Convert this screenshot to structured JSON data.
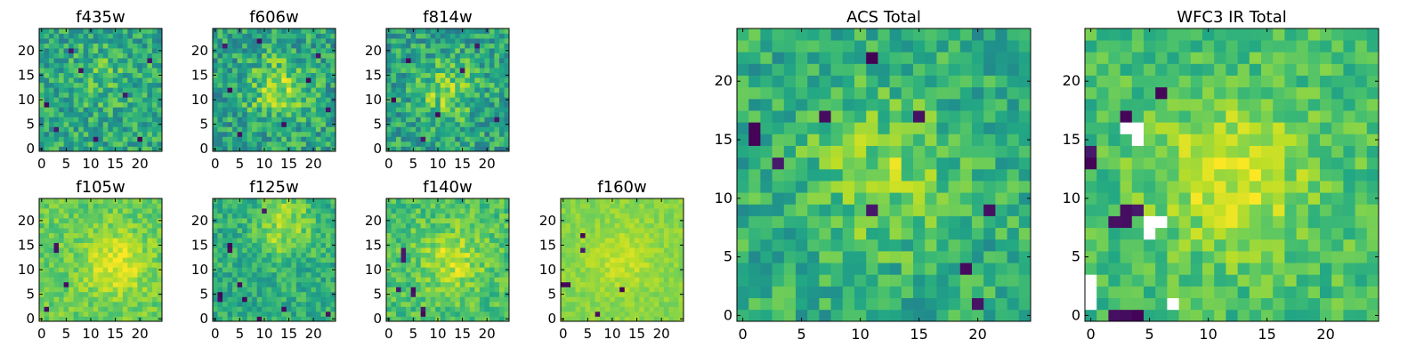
{
  "chart_data": {
    "type": "heatmap",
    "colormap": "viridis",
    "colors": {
      "low": "#440154",
      "mid": "#21908c",
      "high": "#fde725",
      "masked": "#ffffff",
      "frame": "#000000"
    },
    "panels": [
      {
        "title": "f435w",
        "grid_size": 25,
        "xticks": [
          0,
          5,
          10,
          15,
          20
        ],
        "yticks": [
          0,
          5,
          10,
          15,
          20
        ],
        "xlim": [
          0,
          24
        ],
        "ylim": [
          0,
          24
        ],
        "bright_center": [
          13,
          15
        ],
        "bright_amp": 0.1,
        "noise_min": 0.2,
        "noise_max": 0.95,
        "base": 0.62,
        "dark_pixels": [
          [
            6,
            20
          ],
          [
            17,
            11
          ],
          [
            3,
            4
          ],
          [
            20,
            2
          ],
          [
            8,
            16
          ],
          [
            22,
            18
          ],
          [
            11,
            2
          ],
          [
            1,
            9
          ]
        ],
        "masked_pixels": []
      },
      {
        "title": "f606w",
        "grid_size": 25,
        "xticks": [
          0,
          5,
          10,
          15,
          20
        ],
        "yticks": [
          0,
          5,
          10,
          15,
          20
        ],
        "xlim": [
          0,
          24
        ],
        "ylim": [
          0,
          24
        ],
        "bright_center": [
          13,
          12
        ],
        "bright_amp": 0.25,
        "noise_min": 0.15,
        "noise_max": 0.95,
        "base": 0.6,
        "dark_pixels": [
          [
            2,
            21
          ],
          [
            19,
            14
          ],
          [
            5,
            3
          ],
          [
            23,
            8
          ],
          [
            9,
            22
          ],
          [
            14,
            5
          ],
          [
            21,
            19
          ],
          [
            3,
            12
          ]
        ],
        "masked_pixels": []
      },
      {
        "title": "f814w",
        "grid_size": 25,
        "xticks": [
          0,
          5,
          10,
          15,
          20
        ],
        "yticks": [
          0,
          5,
          10,
          15,
          20
        ],
        "xlim": [
          0,
          24
        ],
        "ylim": [
          0,
          24
        ],
        "bright_center": [
          12,
          12
        ],
        "bright_amp": 0.25,
        "noise_min": 0.15,
        "noise_max": 0.95,
        "base": 0.58,
        "dark_pixels": [
          [
            4,
            18
          ],
          [
            18,
            21
          ],
          [
            7,
            2
          ],
          [
            22,
            6
          ],
          [
            15,
            16
          ],
          [
            1,
            10
          ],
          [
            10,
            7
          ]
        ],
        "masked_pixels": []
      },
      {
        "title": "f105w",
        "grid_size": 25,
        "xticks": [
          0,
          5,
          10,
          15,
          20
        ],
        "yticks": [
          0,
          5,
          10,
          15,
          20
        ],
        "xlim": [
          0,
          24
        ],
        "ylim": [
          0,
          24
        ],
        "bright_center": [
          15,
          11
        ],
        "bright_amp": 0.2,
        "noise_min": 0.55,
        "noise_max": 0.95,
        "base": 0.78,
        "dark_pixels": [
          [
            3,
            15
          ],
          [
            3,
            14
          ],
          [
            5,
            7
          ],
          [
            1,
            2
          ]
        ],
        "masked_pixels": []
      },
      {
        "title": "f125w",
        "grid_size": 25,
        "xticks": [
          0,
          5,
          10,
          15,
          20
        ],
        "yticks": [
          0,
          5,
          10,
          15,
          20
        ],
        "xlim": [
          0,
          24
        ],
        "ylim": [
          0,
          24
        ],
        "bright_center": [
          14,
          19
        ],
        "bright_amp": 0.25,
        "noise_min": 0.35,
        "noise_max": 0.9,
        "base": 0.62,
        "dark_pixels": [
          [
            3,
            14
          ],
          [
            3,
            15
          ],
          [
            5,
            7
          ],
          [
            1,
            5
          ],
          [
            1,
            4
          ],
          [
            9,
            0
          ],
          [
            14,
            2
          ],
          [
            23,
            1
          ],
          [
            6,
            4
          ],
          [
            10,
            22
          ]
        ],
        "masked_pixels": []
      },
      {
        "title": "f140w",
        "grid_size": 25,
        "xticks": [
          0,
          5,
          10,
          15,
          20
        ],
        "yticks": [
          0,
          5,
          10,
          15,
          20
        ],
        "xlim": [
          0,
          24
        ],
        "ylim": [
          0,
          24
        ],
        "bright_center": [
          13,
          12
        ],
        "bright_amp": 0.2,
        "noise_min": 0.45,
        "noise_max": 0.95,
        "base": 0.72,
        "dark_pixels": [
          [
            3,
            14
          ],
          [
            3,
            13
          ],
          [
            3,
            12
          ],
          [
            5,
            6
          ],
          [
            5,
            5
          ],
          [
            2,
            6
          ],
          [
            7,
            1
          ],
          [
            7,
            2
          ]
        ],
        "masked_pixels": []
      },
      {
        "title": "f160w",
        "grid_size": 25,
        "xticks": [
          0,
          5,
          10,
          15,
          20
        ],
        "yticks": [
          0,
          5,
          10,
          15,
          20
        ],
        "xlim": [
          0,
          24
        ],
        "ylim": [
          0,
          24
        ],
        "bright_center": [
          12,
          12
        ],
        "bright_amp": 0.1,
        "noise_min": 0.7,
        "noise_max": 0.93,
        "base": 0.82,
        "dark_pixels": [
          [
            4,
            17
          ],
          [
            4,
            14
          ],
          [
            1,
            7
          ],
          [
            0,
            7
          ],
          [
            12,
            6
          ],
          [
            7,
            1
          ]
        ],
        "masked_pixels": []
      },
      {
        "title": "ACS Total",
        "grid_size": 25,
        "xticks": [
          0,
          5,
          10,
          15,
          20
        ],
        "yticks": [
          0,
          5,
          10,
          15,
          20
        ],
        "xlim": [
          0,
          24
        ],
        "ylim": [
          0,
          24
        ],
        "bright_center": [
          12,
          12
        ],
        "bright_amp": 0.2,
        "noise_min": 0.3,
        "noise_max": 0.95,
        "base": 0.62,
        "dark_pixels": [
          [
            11,
            22
          ],
          [
            1,
            16
          ],
          [
            1,
            15
          ],
          [
            7,
            17
          ],
          [
            15,
            17
          ],
          [
            21,
            9
          ],
          [
            19,
            4
          ],
          [
            20,
            1
          ],
          [
            11,
            9
          ],
          [
            3,
            13
          ]
        ],
        "masked_pixels": []
      },
      {
        "title": "WFC3 IR Total",
        "grid_size": 25,
        "xticks": [
          0,
          5,
          10,
          15,
          20
        ],
        "yticks": [
          0,
          5,
          10,
          15,
          20
        ],
        "xlim": [
          0,
          24
        ],
        "ylim": [
          0,
          24
        ],
        "bright_center": [
          12,
          12
        ],
        "bright_amp": 0.25,
        "noise_min": 0.45,
        "noise_max": 0.95,
        "base": 0.7,
        "dark_pixels": [
          [
            6,
            19
          ],
          [
            3,
            17
          ],
          [
            0,
            14
          ],
          [
            0,
            13
          ],
          [
            2,
            8
          ],
          [
            3,
            8
          ],
          [
            4,
            9
          ],
          [
            3,
            9
          ],
          [
            2,
            0
          ],
          [
            3,
            0
          ],
          [
            4,
            0
          ]
        ],
        "masked_pixels": [
          [
            3,
            16
          ],
          [
            4,
            16
          ],
          [
            4,
            15
          ],
          [
            5,
            8
          ],
          [
            6,
            8
          ],
          [
            5,
            7
          ],
          [
            0,
            1
          ],
          [
            0,
            2
          ],
          [
            0,
            3
          ],
          [
            7,
            1
          ]
        ]
      }
    ]
  }
}
